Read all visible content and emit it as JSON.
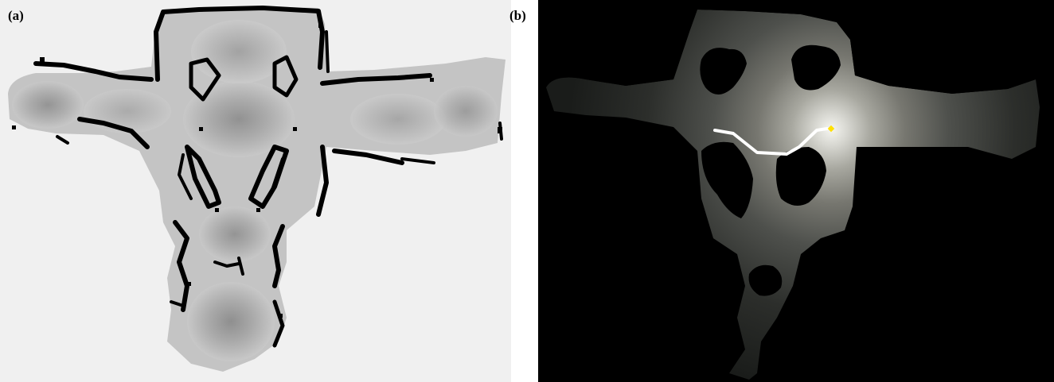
{
  "panels": [
    {
      "id": "a",
      "label": "(a)",
      "content": "occupancy-grid-map",
      "colors": {
        "background": "#f0f0f0",
        "free_space": "#c4c4c4",
        "obstacles": "#000000"
      }
    },
    {
      "id": "b",
      "label": "(b)",
      "content": "distance-field-with-path",
      "colors": {
        "background": "#000000",
        "field_min": "#1a1c1a",
        "field_max": "#f5f5f0",
        "path": "#ffffff",
        "goal_marker": "#ffe000"
      }
    }
  ]
}
